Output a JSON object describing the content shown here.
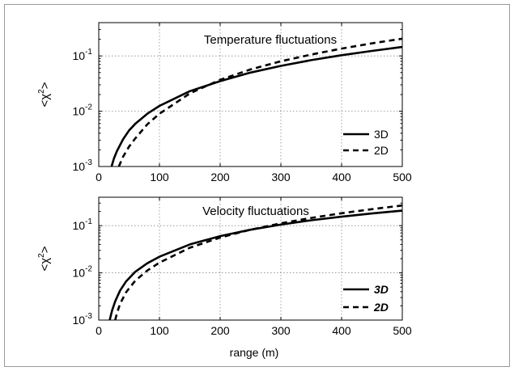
{
  "chart_data": [
    {
      "type": "line",
      "title": "Temperature fluctuations",
      "ylabel": "<χ²>",
      "xlabel": "",
      "yscale": "log",
      "xlim": [
        0,
        500
      ],
      "ylim": [
        0.001,
        0.4
      ],
      "grid": true,
      "legend_position": "bottom-right",
      "legend_style": "normal",
      "x_ticks": [
        0,
        100,
        200,
        300,
        400,
        500
      ],
      "x_tick_labels": [
        "0",
        "100",
        "200",
        "300",
        "400",
        "500"
      ],
      "y_ticks": [
        0.001,
        0.01,
        0.1
      ],
      "y_tick_bases": [
        "10",
        "10",
        "10"
      ],
      "y_tick_exponents": [
        "-3",
        "-2",
        "-1"
      ],
      "series": [
        {
          "name": "3D",
          "style": "solid",
          "x": [
            21,
            25,
            30,
            40,
            50,
            60,
            80,
            100,
            150,
            200,
            250,
            300,
            350,
            400,
            450,
            500
          ],
          "y": [
            0.001,
            0.0014,
            0.0019,
            0.0031,
            0.0045,
            0.0059,
            0.009,
            0.0125,
            0.023,
            0.035,
            0.05,
            0.066,
            0.084,
            0.103,
            0.123,
            0.145
          ]
        },
        {
          "name": "2D",
          "style": "dashed",
          "x": [
            33,
            40,
            50,
            60,
            80,
            100,
            150,
            200,
            250,
            300,
            350,
            400,
            450,
            500
          ],
          "y": [
            0.001,
            0.0015,
            0.0023,
            0.0032,
            0.0058,
            0.009,
            0.021,
            0.037,
            0.057,
            0.08,
            0.106,
            0.136,
            0.169,
            0.205
          ]
        }
      ]
    },
    {
      "type": "line",
      "title": "Velocity fluctuations",
      "ylabel": "<χ²>",
      "xlabel": "range (m)",
      "yscale": "log",
      "xlim": [
        0,
        500
      ],
      "ylim": [
        0.001,
        0.4
      ],
      "grid": true,
      "legend_position": "bottom-right",
      "legend_style": "bold-italic",
      "x_ticks": [
        0,
        100,
        200,
        300,
        400,
        500
      ],
      "x_tick_labels": [
        "0",
        "100",
        "200",
        "300",
        "400",
        "500"
      ],
      "y_ticks": [
        0.001,
        0.01,
        0.1
      ],
      "y_tick_bases": [
        "10",
        "10",
        "10"
      ],
      "y_tick_exponents": [
        "-3",
        "-2",
        "-1"
      ],
      "series": [
        {
          "name": "3D",
          "style": "solid",
          "x": [
            18,
            22,
            27,
            35,
            45,
            60,
            80,
            100,
            150,
            200,
            250,
            300,
            350,
            400,
            450,
            500
          ],
          "y": [
            0.001,
            0.0016,
            0.0025,
            0.0042,
            0.0066,
            0.0105,
            0.016,
            0.022,
            0.04,
            0.06,
            0.082,
            0.105,
            0.13,
            0.155,
            0.181,
            0.208
          ]
        },
        {
          "name": "2D",
          "style": "dashed",
          "x": [
            27,
            30,
            35,
            45,
            60,
            80,
            100,
            150,
            200,
            250,
            300,
            350,
            400,
            450,
            500
          ],
          "y": [
            0.001,
            0.0014,
            0.0022,
            0.0039,
            0.0068,
            0.0112,
            0.0165,
            0.034,
            0.056,
            0.082,
            0.112,
            0.146,
            0.183,
            0.223,
            0.268
          ]
        }
      ]
    }
  ]
}
